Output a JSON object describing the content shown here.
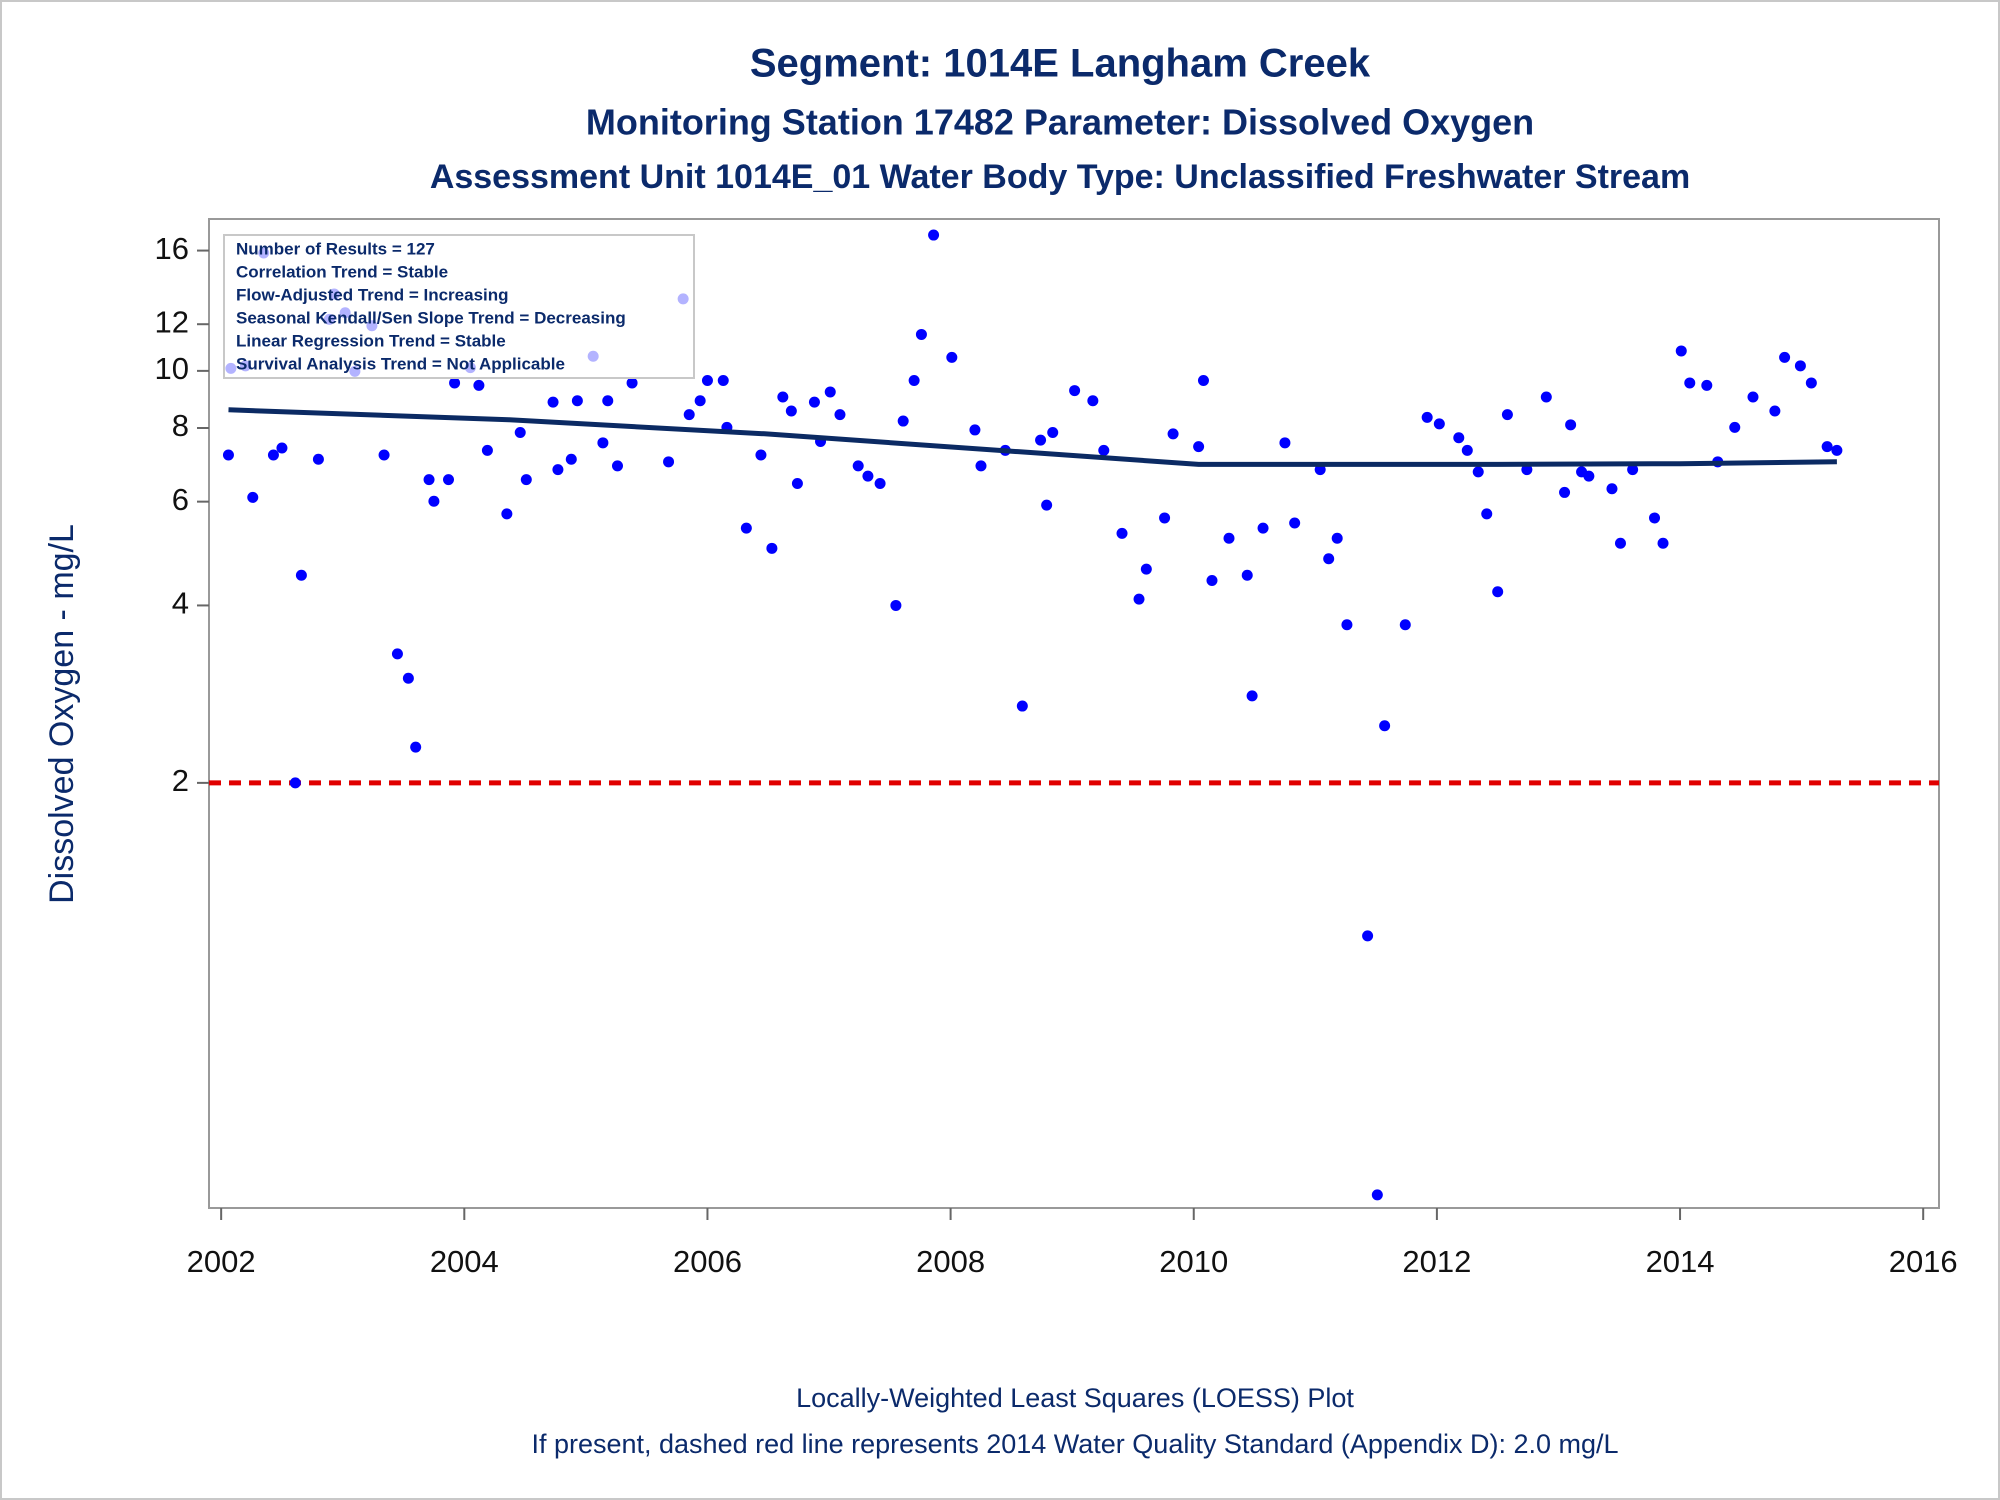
{
  "chart_data": {
    "type": "scatter",
    "title": "Segment: 1014E  Langham Creek",
    "subtitles": [
      "Monitoring Station 17482 Parameter: Dissolved Oxygen",
      "Assessment Unit 1014E_01   Water Body Type: Unclassified Freshwater Stream"
    ],
    "y_label": "Dissolved Oxygen - mg/L",
    "annotations": [
      "Number of Results = 127",
      "Correlation Trend = Stable",
      "Flow-Adjusted Trend = Increasing",
      "Seasonal Kendall/Sen Slope Trend = Decreasing",
      "Linear Regression Trend = Stable",
      "Survival Analysis Trend = Not Applicable"
    ],
    "footnotes": [
      "Locally-Weighted Least Squares (LOESS) Plot",
      "If present, dashed red line represents 2014 Water Quality Standard (Appendix D): 2.0 mg/L"
    ],
    "xlim": [
      2001.9,
      2016.13
    ],
    "xticks": [
      2002,
      2004,
      2006,
      2008,
      2010,
      2012,
      2014,
      2016
    ],
    "ylim": [
      0.38,
      18.1
    ],
    "yticks": [
      2,
      4,
      6,
      8,
      10,
      12,
      16
    ],
    "log_y": true,
    "reference_line": {
      "value": 2,
      "color": "#e00000",
      "style": "dashed"
    },
    "series": [
      {
        "type": "scatter",
        "color": "#0000ff",
        "x": [
          2002.06,
          2002.08,
          2002.2,
          2002.26,
          2002.35,
          2002.43,
          2002.5,
          2002.66,
          2002.61,
          2002.8,
          2002.89,
          2002.93,
          2003.02,
          2003.1,
          2003.24,
          2003.34,
          2003.45,
          2003.54,
          2003.6,
          2003.71,
          2003.75,
          2003.87,
          2003.92,
          2004.05,
          2004.12,
          2004.19,
          2004.35,
          2004.46,
          2004.51,
          2004.73,
          2004.77,
          2004.88,
          2004.93,
          2005.06,
          2005.14,
          2005.18,
          2005.26,
          2005.38,
          2005.68,
          2005.8,
          2005.85,
          2005.94,
          2006.0,
          2006.13,
          2006.16,
          2006.32,
          2006.44,
          2006.53,
          2006.62,
          2006.69,
          2006.74,
          2006.88,
          2006.93,
          2007.01,
          2007.09,
          2007.24,
          2007.32,
          2007.42,
          2007.55,
          2007.61,
          2007.7,
          2007.76,
          2007.86,
          2008.01,
          2008.2,
          2008.25,
          2008.45,
          2008.59,
          2008.74,
          2008.79,
          2008.84,
          2009.02,
          2009.17,
          2009.26,
          2009.41,
          2009.55,
          2009.61,
          2009.76,
          2009.83,
          2010.04,
          2010.08,
          2010.15,
          2010.29,
          2010.44,
          2010.48,
          2010.57,
          2010.75,
          2010.83,
          2011.04,
          2011.11,
          2011.18,
          2011.26,
          2011.43,
          2011.51,
          2011.57,
          2011.74,
          2011.92,
          2012.02,
          2012.18,
          2012.25,
          2012.34,
          2012.41,
          2012.5,
          2012.58,
          2012.74,
          2012.9,
          2013.05,
          2013.1,
          2013.19,
          2013.25,
          2013.44,
          2013.51,
          2013.61,
          2013.79,
          2013.86,
          2014.01,
          2014.08,
          2014.22,
          2014.31,
          2014.45,
          2014.6,
          2014.78,
          2014.86,
          2014.99,
          2015.08,
          2015.21,
          2015.29
        ],
        "values": [
          7.2,
          10.1,
          10.2,
          6.1,
          15.85,
          7.2,
          7.4,
          4.5,
          2.0,
          7.08,
          12.23,
          13.5,
          12.55,
          9.98,
          11.93,
          7.2,
          3.31,
          3.01,
          2.3,
          6.54,
          6.01,
          6.54,
          9.54,
          10.13,
          9.45,
          7.33,
          5.72,
          7.86,
          6.54,
          8.85,
          6.8,
          7.08,
          8.9,
          10.59,
          7.55,
          8.9,
          6.9,
          9.54,
          7.01,
          13.25,
          8.43,
          8.9,
          9.63,
          9.63,
          8.02,
          5.41,
          7.2,
          5.0,
          9.03,
          8.55,
          6.44,
          8.85,
          7.59,
          9.21,
          8.43,
          6.9,
          6.63,
          6.44,
          4.0,
          8.22,
          9.63,
          11.53,
          17.0,
          10.54,
          7.94,
          6.9,
          7.33,
          2.7,
          7.63,
          5.92,
          7.86,
          9.26,
          8.9,
          7.33,
          5.3,
          4.1,
          4.61,
          5.63,
          7.82,
          7.44,
          9.63,
          4.41,
          5.2,
          4.5,
          2.81,
          5.41,
          7.55,
          5.52,
          6.8,
          4.8,
          5.2,
          3.71,
          1.1,
          0.4,
          2.5,
          3.71,
          8.34,
          8.13,
          7.7,
          7.33,
          6.74,
          5.72,
          4.22,
          8.43,
          6.8,
          9.03,
          6.22,
          8.1,
          6.74,
          6.63,
          6.31,
          5.1,
          6.8,
          5.63,
          5.1,
          10.81,
          9.54,
          9.45,
          7.01,
          8.02,
          9.03,
          8.55,
          10.54,
          10.2,
          9.54,
          7.44,
          7.33
        ]
      },
      {
        "type": "line",
        "color": "#0b2a63",
        "x": [
          2002.06,
          2004.37,
          2006.47,
          2008.57,
          2010.04,
          2012.5,
          2014.0,
          2015.29
        ],
        "values": [
          8.59,
          8.26,
          7.82,
          7.29,
          6.94,
          6.94,
          6.96,
          7.01
        ]
      }
    ]
  }
}
